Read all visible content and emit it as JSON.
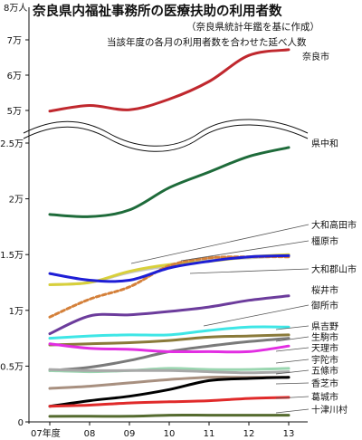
{
  "chart_data": {
    "type": "line",
    "title": "奈良県内福祉事務所の医療扶助の利用者数",
    "subtitle1": "（奈良県統計年鑑を基に作成）",
    "subtitle2": "当該年度の各月の利用者数を合わせた延べ人数",
    "x": [
      2007,
      2008,
      2009,
      2010,
      2011,
      2012,
      2013
    ],
    "x_tick_labels": [
      "07年度",
      "08",
      "09",
      "10",
      "11",
      "12",
      "13"
    ],
    "y_unit_top": "8万人",
    "y_ticks_upper": [
      {
        "value": 50000,
        "label": "5万"
      },
      {
        "value": 60000,
        "label": "6万"
      },
      {
        "value": 70000,
        "label": "7万"
      }
    ],
    "y_ticks_lower": [
      {
        "value": 0,
        "label": "0"
      },
      {
        "value": 5000,
        "label": "0.5万"
      },
      {
        "value": 10000,
        "label": "1万"
      },
      {
        "value": 15000,
        "label": "1.5万"
      },
      {
        "value": 20000,
        "label": "2万"
      },
      {
        "value": 25000,
        "label": "2.5万"
      }
    ],
    "axis_break": "between 2.5万 and 5万",
    "series": [
      {
        "name": "奈良市",
        "color": "#c0282e",
        "axis": "upper",
        "values": [
          49800,
          51400,
          50200,
          53200,
          58200,
          65600,
          67200
        ]
      },
      {
        "name": "県中和",
        "color": "#1e6b3a",
        "axis": "lower",
        "values": [
          18600,
          18400,
          19000,
          21000,
          22400,
          23800,
          24600
        ]
      },
      {
        "name": "大和高田市",
        "color": "#c4c4c4",
        "axis": "lower",
        "values": [
          12300,
          12500,
          13400,
          14000,
          14500,
          14700,
          14900
        ]
      },
      {
        "name": "橿原市",
        "color": "#d8d03a",
        "axis": "lower",
        "values": [
          12300,
          12500,
          13500,
          14100,
          14400,
          14800,
          15000
        ]
      },
      {
        "name": "大和郡山市",
        "color": "#d4803a",
        "dashed": true,
        "axis": "lower",
        "values": [
          9400,
          11000,
          12100,
          14000,
          14700,
          14800,
          14800
        ]
      },
      {
        "name": "大和郡山市(線)",
        "color": "#1e1ed6",
        "axis": "lower",
        "values": [
          13300,
          12700,
          12700,
          13800,
          14400,
          14800,
          14900
        ]
      },
      {
        "name": "桜井市",
        "color": "#6c3c9c",
        "axis": "lower",
        "values": [
          7900,
          9500,
          9600,
          9900,
          10300,
          10900,
          11300
        ]
      },
      {
        "name": "御所市",
        "color": "#3ee6e6",
        "axis": "lower",
        "values": [
          7500,
          7700,
          7800,
          7800,
          8200,
          8500,
          8500
        ]
      },
      {
        "name": "県吉野",
        "color": "#7a7a7a",
        "axis": "lower",
        "values": [
          4600,
          4900,
          5500,
          6300,
          6800,
          7200,
          7500
        ]
      },
      {
        "name": "生駒市",
        "color": "#8a7a3a",
        "axis": "lower",
        "values": [
          6900,
          7000,
          7100,
          7300,
          7600,
          7700,
          7800
        ]
      },
      {
        "name": "天理市",
        "color": "#e22ee2",
        "axis": "lower",
        "values": [
          7000,
          6600,
          6500,
          6300,
          6300,
          6300,
          6800
        ]
      },
      {
        "name": "宇陀市",
        "color": "#9ad6b0",
        "axis": "lower",
        "values": [
          4600,
          4500,
          4600,
          4800,
          4700,
          4700,
          4800
        ]
      },
      {
        "name": "五條市",
        "color": "#a8a8a8",
        "axis": "lower",
        "values": [
          4700,
          4600,
          4600,
          4600,
          4500,
          4400,
          4500
        ]
      },
      {
        "name": "香芝市",
        "color": "#a89080",
        "axis": "lower",
        "values": [
          3000,
          3200,
          3500,
          3800,
          4000,
          4000,
          4000
        ]
      },
      {
        "name": "葛城市(黒)",
        "color": "#000000",
        "axis": "lower",
        "values": [
          1400,
          1900,
          2300,
          2900,
          3700,
          3900,
          4000
        ]
      },
      {
        "name": "葛城市",
        "color": "#e02a2a",
        "axis": "lower",
        "values": [
          1400,
          1500,
          1700,
          1800,
          1900,
          2100,
          2200
        ]
      },
      {
        "name": "十津川村",
        "color": "#556b2f",
        "axis": "lower",
        "values": [
          500,
          500,
          500,
          600,
          600,
          600,
          600
        ]
      }
    ],
    "labels": [
      {
        "text": "奈良市"
      },
      {
        "text": "県中和"
      },
      {
        "text": "大和高田市"
      },
      {
        "text": "橿原市"
      },
      {
        "text": "大和郡山市"
      },
      {
        "text": "桜井市"
      },
      {
        "text": "御所市"
      },
      {
        "text": "県吉野"
      },
      {
        "text": "生駒市"
      },
      {
        "text": "天理市"
      },
      {
        "text": "宇陀市"
      },
      {
        "text": "五條市"
      },
      {
        "text": "香芝市"
      },
      {
        "text": "葛城市"
      },
      {
        "text": "十津川村"
      }
    ]
  }
}
